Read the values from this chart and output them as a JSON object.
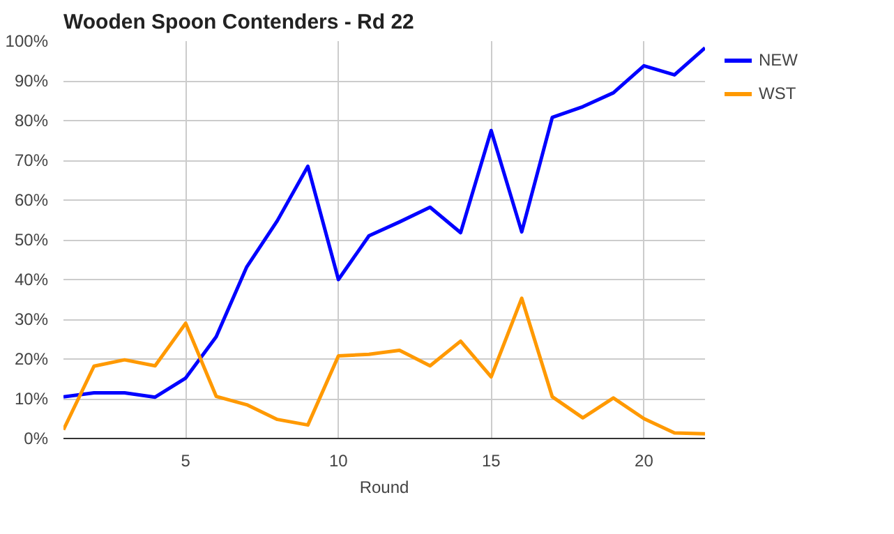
{
  "chart_data": {
    "type": "line",
    "title": "Wooden Spoon Contenders - Rd 22",
    "xlabel": "Round",
    "x": [
      1,
      2,
      3,
      4,
      5,
      6,
      7,
      8,
      9,
      10,
      11,
      12,
      13,
      14,
      15,
      16,
      17,
      18,
      19,
      20,
      21,
      22
    ],
    "series": [
      {
        "name": "NEW",
        "color": "#0000ff",
        "values": [
          10.5,
          11.5,
          11.5,
          10.4,
          15.2,
          25.6,
          43.2,
          54.8,
          68.5,
          40,
          51,
          54.5,
          58.2,
          51.8,
          77.5,
          52,
          80.8,
          83.5,
          87,
          93.8,
          91.5,
          98.3
        ]
      },
      {
        "name": "WST",
        "color": "#ff9900",
        "values": [
          2.2,
          18.2,
          19.8,
          18.3,
          29,
          10.6,
          8.5,
          4.8,
          3.4,
          20.8,
          21.2,
          22.2,
          18.3,
          24.5,
          15.5,
          35.3,
          10.5,
          5.2,
          10.2,
          5,
          1.4,
          1.2
        ]
      }
    ],
    "xlim": [
      1,
      22
    ],
    "xticks": [
      5,
      10,
      15,
      20
    ],
    "ylim": [
      0,
      100
    ],
    "yticks": [
      {
        "value": 0,
        "label": "0%"
      },
      {
        "value": 10,
        "label": "10%"
      },
      {
        "value": 20,
        "label": "20%"
      },
      {
        "value": 30,
        "label": "30%"
      },
      {
        "value": 40,
        "label": "40%"
      },
      {
        "value": 50,
        "label": "50%"
      },
      {
        "value": 60,
        "label": "60%"
      },
      {
        "value": 70,
        "label": "70%"
      },
      {
        "value": 80,
        "label": "80%"
      },
      {
        "value": 90,
        "label": "90%"
      },
      {
        "value": 100,
        "label": "100%"
      }
    ],
    "grid": true,
    "legend": "right",
    "line_style": "solid"
  }
}
